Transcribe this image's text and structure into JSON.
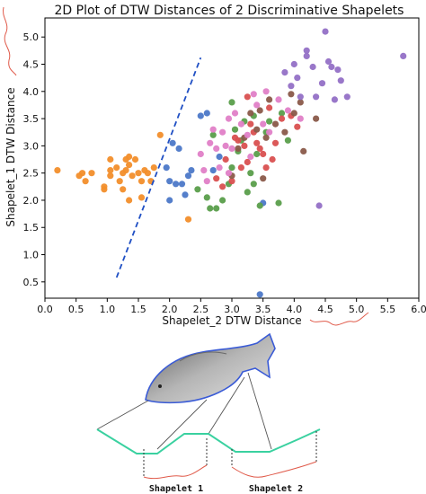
{
  "chart_data": {
    "type": "scatter",
    "title": "2D Plot of DTW Distances of 2 Discriminative Shapelets",
    "xlabel": "Shapelet_2 DTW Distance",
    "ylabel": "Shapelet_1 DTW Distance",
    "xlim": [
      0.0,
      6.0
    ],
    "ylim": [
      0.2,
      5.35
    ],
    "xticks": [
      "0.0",
      "0.5",
      "1.0",
      "1.5",
      "2.0",
      "2.5",
      "3.0",
      "3.5",
      "4.0",
      "4.5",
      "5.0",
      "5.5",
      "6.0"
    ],
    "yticks": [
      "0.5",
      "1.0",
      "1.5",
      "2.0",
      "2.5",
      "3.0",
      "3.5",
      "4.0",
      "4.5",
      "5.0"
    ],
    "grid": false,
    "legend": "none",
    "decision_line": {
      "x": [
        1.15,
        2.5
      ],
      "y": [
        0.58,
        4.62
      ],
      "color": "#1f4fc4",
      "style": "dashed"
    },
    "series": [
      {
        "color": "#f28e2b",
        "points": [
          [
            0.2,
            2.55
          ],
          [
            0.55,
            2.45
          ],
          [
            0.6,
            2.5
          ],
          [
            0.65,
            2.35
          ],
          [
            0.75,
            2.5
          ],
          [
            0.95,
            2.25
          ],
          [
            0.95,
            2.2
          ],
          [
            1.05,
            2.45
          ],
          [
            1.05,
            2.55
          ],
          [
            1.05,
            2.75
          ],
          [
            1.15,
            2.6
          ],
          [
            1.2,
            2.35
          ],
          [
            1.25,
            2.5
          ],
          [
            1.25,
            2.2
          ],
          [
            1.3,
            2.55
          ],
          [
            1.3,
            2.75
          ],
          [
            1.35,
            2.8
          ],
          [
            1.35,
            2.65
          ],
          [
            1.4,
            2.45
          ],
          [
            1.45,
            2.75
          ],
          [
            1.5,
            2.5
          ],
          [
            1.55,
            2.35
          ],
          [
            1.6,
            2.55
          ],
          [
            1.65,
            2.5
          ],
          [
            1.7,
            2.35
          ],
          [
            1.35,
            2.0
          ],
          [
            1.75,
            2.6
          ],
          [
            1.85,
            3.2
          ],
          [
            1.55,
            2.05
          ],
          [
            2.3,
            1.65
          ]
        ]
      },
      {
        "color": "#4c78c8",
        "points": [
          [
            2.0,
            2.35
          ],
          [
            2.1,
            2.3
          ],
          [
            2.2,
            2.3
          ],
          [
            2.25,
            2.1
          ],
          [
            2.3,
            2.45
          ],
          [
            2.0,
            2.0
          ],
          [
            2.15,
            2.95
          ],
          [
            2.5,
            3.55
          ],
          [
            2.6,
            3.6
          ],
          [
            2.7,
            2.55
          ],
          [
            2.8,
            2.8
          ],
          [
            2.05,
            3.05
          ],
          [
            1.95,
            2.6
          ],
          [
            2.35,
            2.55
          ],
          [
            3.5,
            1.95
          ],
          [
            3.45,
            0.27
          ]
        ]
      },
      {
        "color": "#5a9e4b",
        "points": [
          [
            2.45,
            2.2
          ],
          [
            2.6,
            2.05
          ],
          [
            2.75,
            1.85
          ],
          [
            2.95,
            2.3
          ],
          [
            3.0,
            2.6
          ],
          [
            3.05,
            3.3
          ],
          [
            3.1,
            2.9
          ],
          [
            3.15,
            3.1
          ],
          [
            3.25,
            2.15
          ],
          [
            3.3,
            2.5
          ],
          [
            3.35,
            3.55
          ],
          [
            3.4,
            2.85
          ],
          [
            3.45,
            1.9
          ],
          [
            3.55,
            3.25
          ],
          [
            3.6,
            3.45
          ],
          [
            3.75,
            1.95
          ],
          [
            3.8,
            3.6
          ],
          [
            3.9,
            3.1
          ],
          [
            2.7,
            3.2
          ],
          [
            2.85,
            2.0
          ],
          [
            3.0,
            3.8
          ],
          [
            3.2,
            3.45
          ],
          [
            3.35,
            2.3
          ],
          [
            2.65,
            1.85
          ]
        ]
      },
      {
        "color": "#d95050",
        "points": [
          [
            2.75,
            2.4
          ],
          [
            2.85,
            2.25
          ],
          [
            2.9,
            2.75
          ],
          [
            3.0,
            2.35
          ],
          [
            3.05,
            3.15
          ],
          [
            3.15,
            2.6
          ],
          [
            3.2,
            3.0
          ],
          [
            3.25,
            2.7
          ],
          [
            3.3,
            3.4
          ],
          [
            3.35,
            3.25
          ],
          [
            3.4,
            3.05
          ],
          [
            3.45,
            2.95
          ],
          [
            3.5,
            2.85
          ],
          [
            3.55,
            2.6
          ],
          [
            3.6,
            3.7
          ],
          [
            3.65,
            2.75
          ],
          [
            3.7,
            3.05
          ],
          [
            3.8,
            3.5
          ],
          [
            3.95,
            3.55
          ],
          [
            4.05,
            3.35
          ],
          [
            3.25,
            3.9
          ],
          [
            3.1,
            3.1
          ]
        ]
      },
      {
        "color": "#8a5a4a",
        "points": [
          [
            3.0,
            2.45
          ],
          [
            3.1,
            2.95
          ],
          [
            3.2,
            3.15
          ],
          [
            3.3,
            3.6
          ],
          [
            3.4,
            3.3
          ],
          [
            3.45,
            3.65
          ],
          [
            3.55,
            3.15
          ],
          [
            3.6,
            3.85
          ],
          [
            3.7,
            3.4
          ],
          [
            3.85,
            3.25
          ],
          [
            4.0,
            3.6
          ],
          [
            4.1,
            3.8
          ],
          [
            4.15,
            2.9
          ],
          [
            3.5,
            2.4
          ],
          [
            4.35,
            3.5
          ],
          [
            3.95,
            3.95
          ]
        ]
      },
      {
        "color": "#e07fc7",
        "points": [
          [
            2.55,
            2.55
          ],
          [
            2.65,
            3.05
          ],
          [
            2.7,
            3.3
          ],
          [
            2.75,
            2.95
          ],
          [
            2.8,
            2.6
          ],
          [
            2.85,
            3.25
          ],
          [
            2.9,
            3.0
          ],
          [
            2.95,
            2.5
          ],
          [
            3.0,
            2.95
          ],
          [
            3.05,
            3.6
          ],
          [
            3.15,
            3.4
          ],
          [
            3.25,
            3.2
          ],
          [
            3.3,
            2.8
          ],
          [
            3.4,
            3.75
          ],
          [
            3.5,
            3.4
          ],
          [
            3.6,
            3.25
          ],
          [
            3.75,
            3.85
          ],
          [
            3.9,
            3.65
          ],
          [
            4.1,
            3.5
          ],
          [
            2.5,
            2.85
          ],
          [
            2.6,
            2.35
          ],
          [
            3.55,
            4.0
          ],
          [
            3.35,
            3.95
          ],
          [
            2.95,
            3.5
          ]
        ]
      },
      {
        "color": "#9470c6",
        "points": [
          [
            3.85,
            4.35
          ],
          [
            3.95,
            4.1
          ],
          [
            4.0,
            4.5
          ],
          [
            4.1,
            3.9
          ],
          [
            4.2,
            4.65
          ],
          [
            4.3,
            4.45
          ],
          [
            4.35,
            3.9
          ],
          [
            4.45,
            4.15
          ],
          [
            4.55,
            4.55
          ],
          [
            4.65,
            3.85
          ],
          [
            4.7,
            4.4
          ],
          [
            4.5,
            5.1
          ],
          [
            4.75,
            4.2
          ],
          [
            4.85,
            3.9
          ],
          [
            5.75,
            4.65
          ],
          [
            4.2,
            4.75
          ],
          [
            4.6,
            4.45
          ],
          [
            4.4,
            1.9
          ],
          [
            4.05,
            4.25
          ]
        ]
      }
    ]
  },
  "illustration": {
    "shapelet_labels": [
      "Shapelet 1",
      "Shapelet 2"
    ],
    "fish_outline_color": "#3a5bd6",
    "series_color": "#3ad1a0",
    "shapelet_color": "#e05a4a"
  }
}
